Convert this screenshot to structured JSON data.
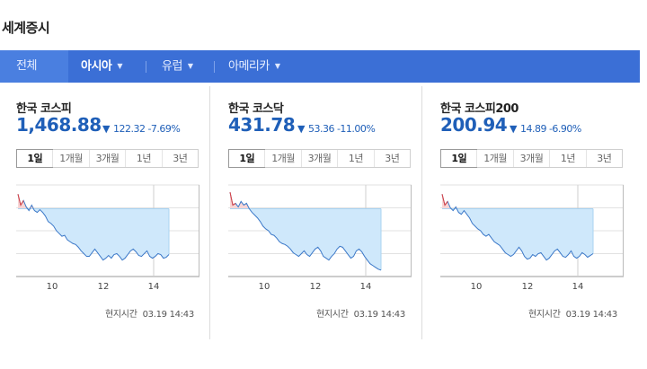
{
  "section_title": "세계증시",
  "tabs": [
    {
      "label": "전체",
      "active": false,
      "has_caret": false
    },
    {
      "label": "아시아",
      "active": true,
      "has_caret": true
    },
    {
      "label": "유럽",
      "active": false,
      "has_caret": true
    },
    {
      "label": "아메리카",
      "active": false,
      "has_caret": true
    }
  ],
  "caret_icon": "▼",
  "colors": {
    "tabbar": "#3b6fd6",
    "down": "#1f5fb8",
    "up": "#e04040",
    "chart_fill": "#cfe8fb",
    "chart_line": "#3b78c8"
  },
  "panels": [
    {
      "name": "한국 코스피",
      "value": "1,468.88",
      "direction": "down",
      "change": "122.32 -7.69%",
      "period_tabs": [
        "1일",
        "1개월",
        "3개월",
        "1년",
        "3년"
      ],
      "active_period": "1일",
      "time_label": "현지시간",
      "time_value": "03.19 14:43",
      "x_ticks": [
        "10",
        "12",
        "14"
      ],
      "prev_close_ratio": 0.74,
      "series": [
        0.9,
        0.78,
        0.83,
        0.76,
        0.72,
        0.78,
        0.72,
        0.7,
        0.73,
        0.7,
        0.66,
        0.6,
        0.58,
        0.55,
        0.5,
        0.47,
        0.44,
        0.45,
        0.4,
        0.38,
        0.36,
        0.35,
        0.32,
        0.28,
        0.25,
        0.22,
        0.22,
        0.26,
        0.3,
        0.26,
        0.22,
        0.18,
        0.2,
        0.23,
        0.2,
        0.24,
        0.25,
        0.22,
        0.18,
        0.2,
        0.24,
        0.28,
        0.3,
        0.27,
        0.23,
        0.22,
        0.25,
        0.28,
        0.22,
        0.2,
        0.22,
        0.25,
        0.24,
        0.2,
        0.21,
        0.24
      ]
    },
    {
      "name": "한국 코스닥",
      "value": "431.78",
      "direction": "down",
      "change": "53.36 -11.00%",
      "period_tabs": [
        "1일",
        "1개월",
        "3개월",
        "1년",
        "3년"
      ],
      "active_period": "1일",
      "time_label": "현지시간",
      "time_value": "03.19 14:43",
      "x_ticks": [
        "10",
        "12",
        "14"
      ],
      "prev_close_ratio": 0.74,
      "series": [
        0.92,
        0.78,
        0.8,
        0.76,
        0.82,
        0.78,
        0.8,
        0.74,
        0.7,
        0.67,
        0.64,
        0.6,
        0.55,
        0.52,
        0.5,
        0.46,
        0.45,
        0.42,
        0.38,
        0.36,
        0.35,
        0.33,
        0.3,
        0.26,
        0.24,
        0.22,
        0.25,
        0.28,
        0.24,
        0.22,
        0.26,
        0.3,
        0.32,
        0.28,
        0.22,
        0.2,
        0.18,
        0.22,
        0.25,
        0.3,
        0.33,
        0.32,
        0.28,
        0.24,
        0.2,
        0.22,
        0.28,
        0.3,
        0.27,
        0.22,
        0.18,
        0.14,
        0.12,
        0.1,
        0.08,
        0.07
      ]
    },
    {
      "name": "한국 코스피200",
      "value": "200.94",
      "direction": "down",
      "change": "14.89 -6.90%",
      "period_tabs": [
        "1일",
        "1개월",
        "3개월",
        "1년",
        "3년"
      ],
      "active_period": "1일",
      "time_label": "현지시간",
      "time_value": "03.19 14:43",
      "x_ticks": [
        "10",
        "12",
        "14"
      ],
      "prev_close_ratio": 0.74,
      "series": [
        0.9,
        0.78,
        0.82,
        0.75,
        0.72,
        0.76,
        0.7,
        0.68,
        0.72,
        0.68,
        0.64,
        0.58,
        0.55,
        0.52,
        0.5,
        0.46,
        0.44,
        0.46,
        0.42,
        0.38,
        0.36,
        0.34,
        0.3,
        0.26,
        0.24,
        0.22,
        0.24,
        0.28,
        0.32,
        0.28,
        0.22,
        0.19,
        0.2,
        0.24,
        0.22,
        0.25,
        0.26,
        0.22,
        0.18,
        0.2,
        0.24,
        0.28,
        0.3,
        0.26,
        0.22,
        0.21,
        0.24,
        0.28,
        0.22,
        0.2,
        0.22,
        0.26,
        0.24,
        0.21,
        0.23,
        0.25
      ]
    }
  ]
}
